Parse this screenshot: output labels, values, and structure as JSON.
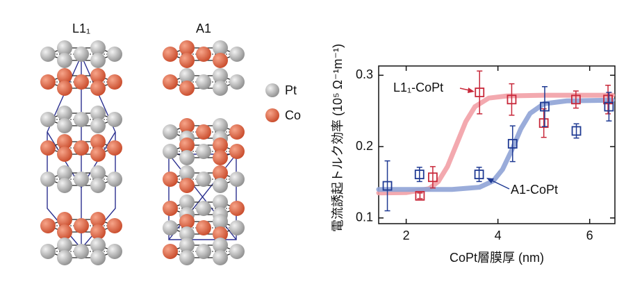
{
  "structures": {
    "labels": [
      "L1₁",
      "A1"
    ],
    "legend": [
      "Pt",
      "Co"
    ]
  },
  "chart_data": {
    "type": "scatter",
    "xlabel": "CoPt層膜厚 (nm)",
    "ylabel": "電流誘起トルク効率 (10⁵ Ω⁻¹m⁻¹)",
    "xlim": [
      1.4,
      6.55
    ],
    "ylim": [
      0.092,
      0.313
    ],
    "xticks": [
      2,
      4,
      6
    ],
    "yticks": [
      0.1,
      0.2,
      0.3
    ],
    "series": [
      {
        "name": "L1₁-CoPt",
        "color": "#c8283a",
        "x": [
          2.3,
          2.58,
          3.6,
          4.3,
          5.0,
          5.7,
          6.4
        ],
        "values": [
          0.131,
          0.157,
          0.276,
          0.266,
          0.233,
          0.266,
          0.266
        ],
        "errors": [
          0.004,
          0.015,
          0.03,
          0.022,
          0.02,
          0.012,
          0.02
        ]
      },
      {
        "name": "A1-CoPt",
        "color": "#1f3a93",
        "x": [
          1.59,
          2.29,
          3.59,
          4.32,
          5.02,
          5.71,
          6.42
        ],
        "values": [
          0.145,
          0.161,
          0.161,
          0.204,
          0.256,
          0.222,
          0.256
        ],
        "errors": [
          0.035,
          0.01,
          0.01,
          0.025,
          0.028,
          0.01,
          0.02
        ]
      }
    ],
    "fits": [
      {
        "color": "#f2a0a6",
        "x": [
          1.4,
          2.0,
          2.5,
          2.7,
          2.9,
          3.1,
          3.3,
          3.5,
          3.8,
          4.2,
          5.0,
          6.5
        ],
        "values": [
          0.135,
          0.1356,
          0.141,
          0.151,
          0.172,
          0.2035,
          0.235,
          0.256,
          0.268,
          0.271,
          0.272,
          0.272
        ]
      },
      {
        "color": "#8fa3d6",
        "x": [
          1.4,
          3.0,
          3.6,
          3.9,
          4.1,
          4.3,
          4.5,
          4.7,
          5.0,
          5.5,
          6.5
        ],
        "values": [
          0.14,
          0.14,
          0.143,
          0.152,
          0.168,
          0.195,
          0.225,
          0.2465,
          0.26,
          0.264,
          0.265
        ]
      }
    ]
  }
}
